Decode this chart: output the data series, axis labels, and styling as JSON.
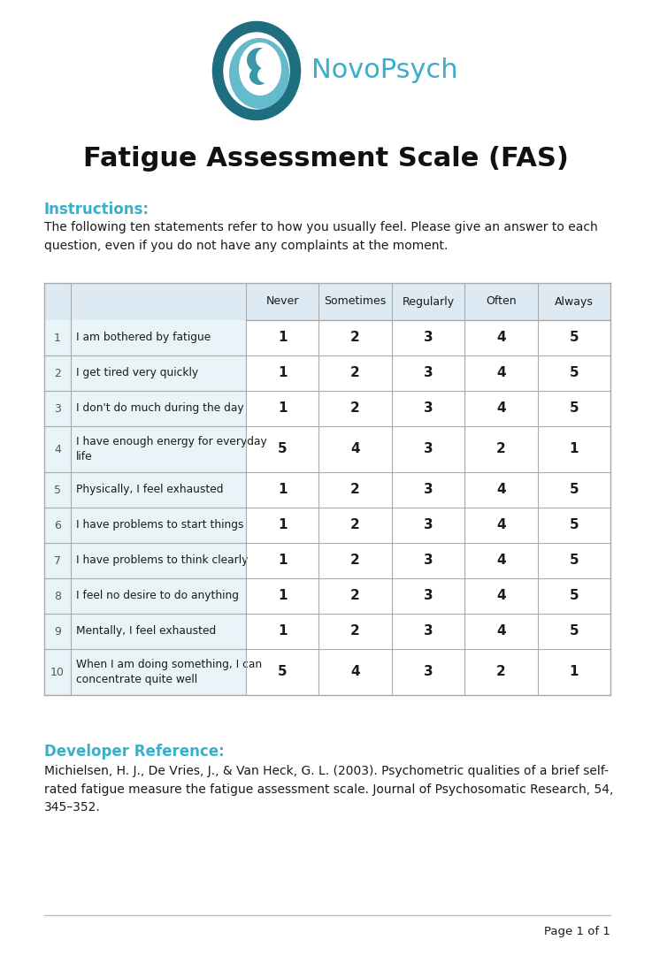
{
  "title": "Fatigue Assessment Scale (FAS)",
  "brand": "NovoPsych",
  "brand_color": "#3aafcc",
  "instructions_label": "Instructions:",
  "instructions_text": "The following ten statements refer to how you usually feel. Please give an answer to each\nquestion, even if you do not have any complaints at the moment.",
  "col_headers": [
    "Never",
    "Sometimes",
    "Regularly",
    "Often",
    "Always"
  ],
  "rows": [
    {
      "num": "1",
      "text": "I am bothered by fatigue",
      "values": [
        "1",
        "2",
        "3",
        "4",
        "5"
      ]
    },
    {
      "num": "2",
      "text": "I get tired very quickly",
      "values": [
        "1",
        "2",
        "3",
        "4",
        "5"
      ]
    },
    {
      "num": "3",
      "text": "I don't do much during the day",
      "values": [
        "1",
        "2",
        "3",
        "4",
        "5"
      ]
    },
    {
      "num": "4",
      "text": "I have enough energy for everyday\nlife",
      "values": [
        "5",
        "4",
        "3",
        "2",
        "1"
      ]
    },
    {
      "num": "5",
      "text": "Physically, I feel exhausted",
      "values": [
        "1",
        "2",
        "3",
        "4",
        "5"
      ]
    },
    {
      "num": "6",
      "text": "I have problems to start things",
      "values": [
        "1",
        "2",
        "3",
        "4",
        "5"
      ]
    },
    {
      "num": "7",
      "text": "I have problems to think clearly",
      "values": [
        "1",
        "2",
        "3",
        "4",
        "5"
      ]
    },
    {
      "num": "8",
      "text": "I feel no desire to do anything",
      "values": [
        "1",
        "2",
        "3",
        "4",
        "5"
      ]
    },
    {
      "num": "9",
      "text": "Mentally, I feel exhausted",
      "values": [
        "1",
        "2",
        "3",
        "4",
        "5"
      ]
    },
    {
      "num": "10",
      "text": "When I am doing something, I can\nconcentrate quite well",
      "values": [
        "5",
        "4",
        "3",
        "2",
        "1"
      ]
    }
  ],
  "dev_ref_label": "Developer Reference:",
  "dev_ref_text": "Michielsen, H. J., De Vries, J., & Van Heck, G. L. (2003). Psychometric qualities of a brief self-\nrated fatigue measure the fatigue assessment scale. Journal of Psychosomatic Research, 54,\n345–352.",
  "footer_text": "Page 1 of 1",
  "table_header_bg": "#ddeaf3",
  "table_left_bg": "#e8f4f8",
  "table_row_bg_even": "#ffffff",
  "table_border_color": "#aaaaaa",
  "text_color": "#1a1a1a",
  "num_col_color": "#555555",
  "teal_color": "#3aafcc",
  "dark_teal": "#1e7a8c"
}
